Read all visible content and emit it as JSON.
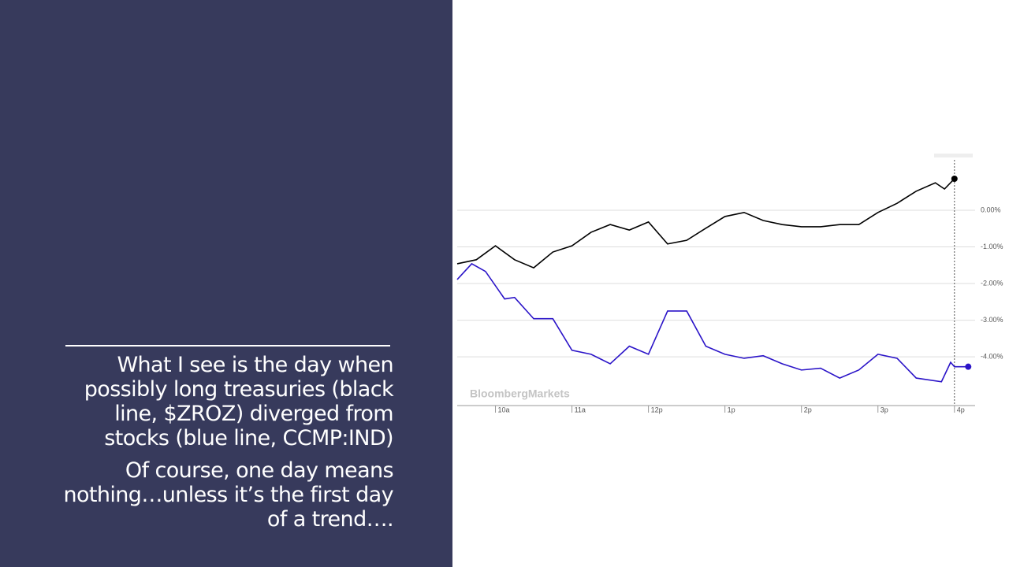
{
  "slide": {
    "paragraphs": [
      {
        "lines": [
          "What I see is the day when",
          "possibly long treasuries (black",
          "line, $ZROZ) diverged from",
          "stocks (blue line, CCMP:IND)"
        ]
      },
      {
        "lines": [
          "Of course, one day means",
          "nothing…unless it’s the first day",
          "of a trend…."
        ]
      }
    ]
  },
  "chart_data": {
    "type": "line",
    "watermark": "BloombergMarkets",
    "xlim": [
      9.5,
      16.27
    ],
    "xticks": [
      {
        "value": 10,
        "label": "10a"
      },
      {
        "value": 11,
        "label": "11a"
      },
      {
        "value": 12,
        "label": "12p"
      },
      {
        "value": 13,
        "label": "1p"
      },
      {
        "value": 14,
        "label": "2p"
      },
      {
        "value": 15,
        "label": "3p"
      },
      {
        "value": 16,
        "label": "4p"
      }
    ],
    "ylim": [
      -5.33,
      1.44
    ],
    "yticks": [
      {
        "value": 0,
        "label": "0.00%"
      },
      {
        "value": -1,
        "label": "-1.00%"
      },
      {
        "value": -2,
        "label": "-2.00%"
      },
      {
        "value": -3,
        "label": "-3.00%"
      },
      {
        "value": -4,
        "label": "-4.00%"
      }
    ],
    "grid": true,
    "series": [
      {
        "color": "#000000",
        "x": [
          9.5,
          9.75,
          10,
          10.25,
          10.5,
          10.75,
          11,
          11.25,
          11.5,
          11.75,
          12,
          12.25,
          12.5,
          12.75,
          13,
          13.25,
          13.5,
          13.75,
          14,
          14.25,
          14.5,
          14.75,
          15,
          15.25,
          15.5,
          15.75,
          15.87,
          16
        ],
        "values": [
          -1.46,
          -1.35,
          -0.97,
          -1.35,
          -1.57,
          -1.14,
          -0.97,
          -0.6,
          -0.39,
          -0.54,
          -0.32,
          -0.92,
          -0.82,
          -0.49,
          -0.17,
          -0.06,
          -0.28,
          -0.39,
          -0.45,
          -0.45,
          -0.39,
          -0.39,
          -0.06,
          0.19,
          0.52,
          0.75,
          0.58,
          0.86
        ]
      },
      {
        "color": "#2b14c8",
        "x": [
          9.5,
          9.69,
          9.87,
          10.12,
          10.25,
          10.5,
          10.75,
          11,
          11.25,
          11.5,
          11.75,
          12,
          12.25,
          12.5,
          12.75,
          13,
          13.25,
          13.5,
          13.75,
          14,
          14.25,
          14.5,
          14.75,
          15,
          15.25,
          15.5,
          15.83,
          15.95,
          16,
          16.18
        ],
        "values": [
          -1.89,
          -1.46,
          -1.67,
          -2.42,
          -2.38,
          -2.96,
          -2.96,
          -3.82,
          -3.93,
          -4.19,
          -3.71,
          -3.93,
          -2.75,
          -2.75,
          -3.71,
          -3.93,
          -4.04,
          -3.97,
          -4.19,
          -4.36,
          -4.31,
          -4.58,
          -4.36,
          -3.93,
          -4.04,
          -4.58,
          -4.68,
          -4.15,
          -4.27,
          -4.27
        ]
      }
    ]
  }
}
